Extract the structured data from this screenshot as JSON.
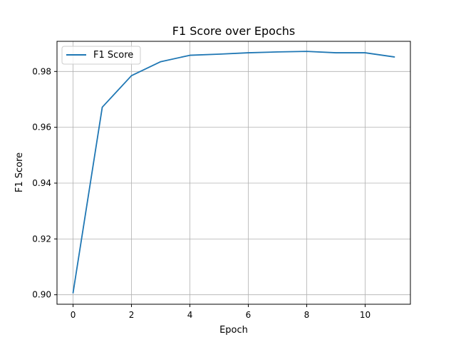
{
  "chart_data": {
    "type": "line",
    "title": "F1 Score over Epochs",
    "xlabel": "Epoch",
    "ylabel": "F1 Score",
    "x": [
      0,
      1,
      2,
      3,
      4,
      5,
      6,
      7,
      8,
      9,
      10,
      11
    ],
    "series": [
      {
        "name": "F1 Score",
        "color": "#1f77b4",
        "values": [
          0.9007,
          0.9672,
          0.9785,
          0.9835,
          0.9858,
          0.9862,
          0.9867,
          0.987,
          0.9872,
          0.9867,
          0.9867,
          0.9852
        ]
      }
    ],
    "xlim": [
      -0.55,
      11.55
    ],
    "ylim": [
      0.8966,
      0.9908
    ],
    "xticks": [
      0,
      2,
      4,
      6,
      8,
      10
    ],
    "yticks": [
      0.9,
      0.92,
      0.94,
      0.96,
      0.98
    ],
    "xtick_labels": [
      "0",
      "2",
      "4",
      "6",
      "8",
      "10"
    ],
    "ytick_labels": [
      "0.90",
      "0.92",
      "0.94",
      "0.96",
      "0.98"
    ],
    "grid": true,
    "legend_position": "upper left"
  }
}
